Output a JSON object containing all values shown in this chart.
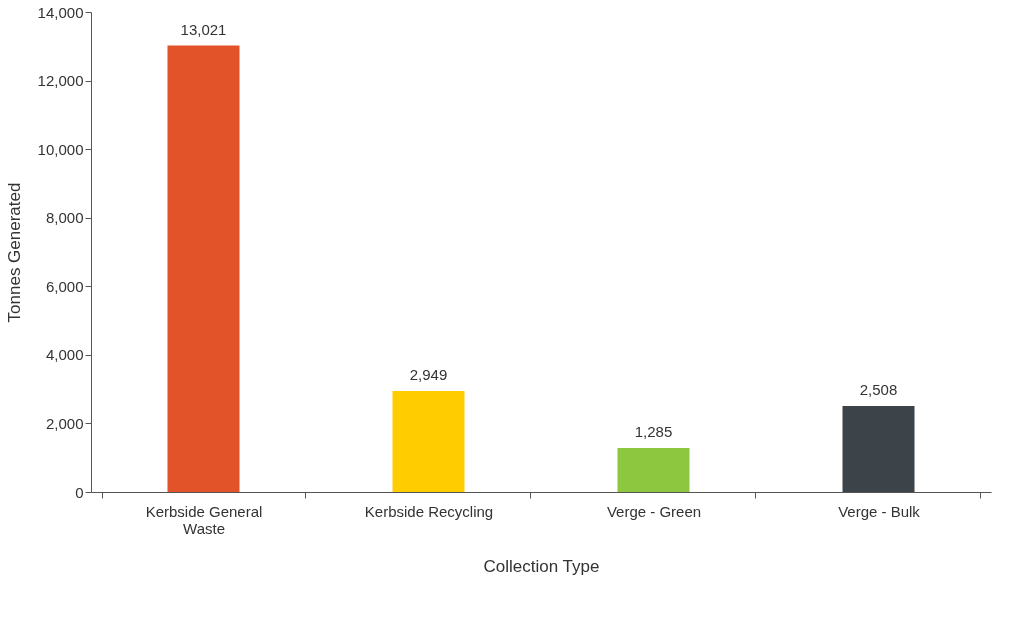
{
  "chart_data": {
    "type": "bar",
    "xlabel": "Collection Type",
    "ylabel": "Tonnes Generated",
    "categories": [
      "Kerbside General Waste",
      "Kerbside Recycling",
      "Verge - Green",
      "Verge - Bulk"
    ],
    "values": [
      13021,
      2949,
      1285,
      2508
    ],
    "colors": [
      "#e2532a",
      "#ffcc00",
      "#8dc63f",
      "#3d4449"
    ],
    "ylim": [
      0,
      14000
    ],
    "yticks": [
      0,
      {
        "value": 2000,
        "label": "2,000"
      },
      {
        "value": 4000,
        "label": "4,000"
      },
      {
        "value": 6000,
        "label": "6,000"
      },
      {
        "value": 8000,
        "label": "8,000"
      },
      {
        "value": 10000,
        "label": "10,000"
      },
      {
        "value": 12000,
        "label": "12,000"
      },
      {
        "value": 14000,
        "label": "14,000"
      }
    ],
    "value_labels": [
      "13,021",
      "2,949",
      "1,285",
      "2,508"
    ],
    "grid": false,
    "legend": false
  }
}
